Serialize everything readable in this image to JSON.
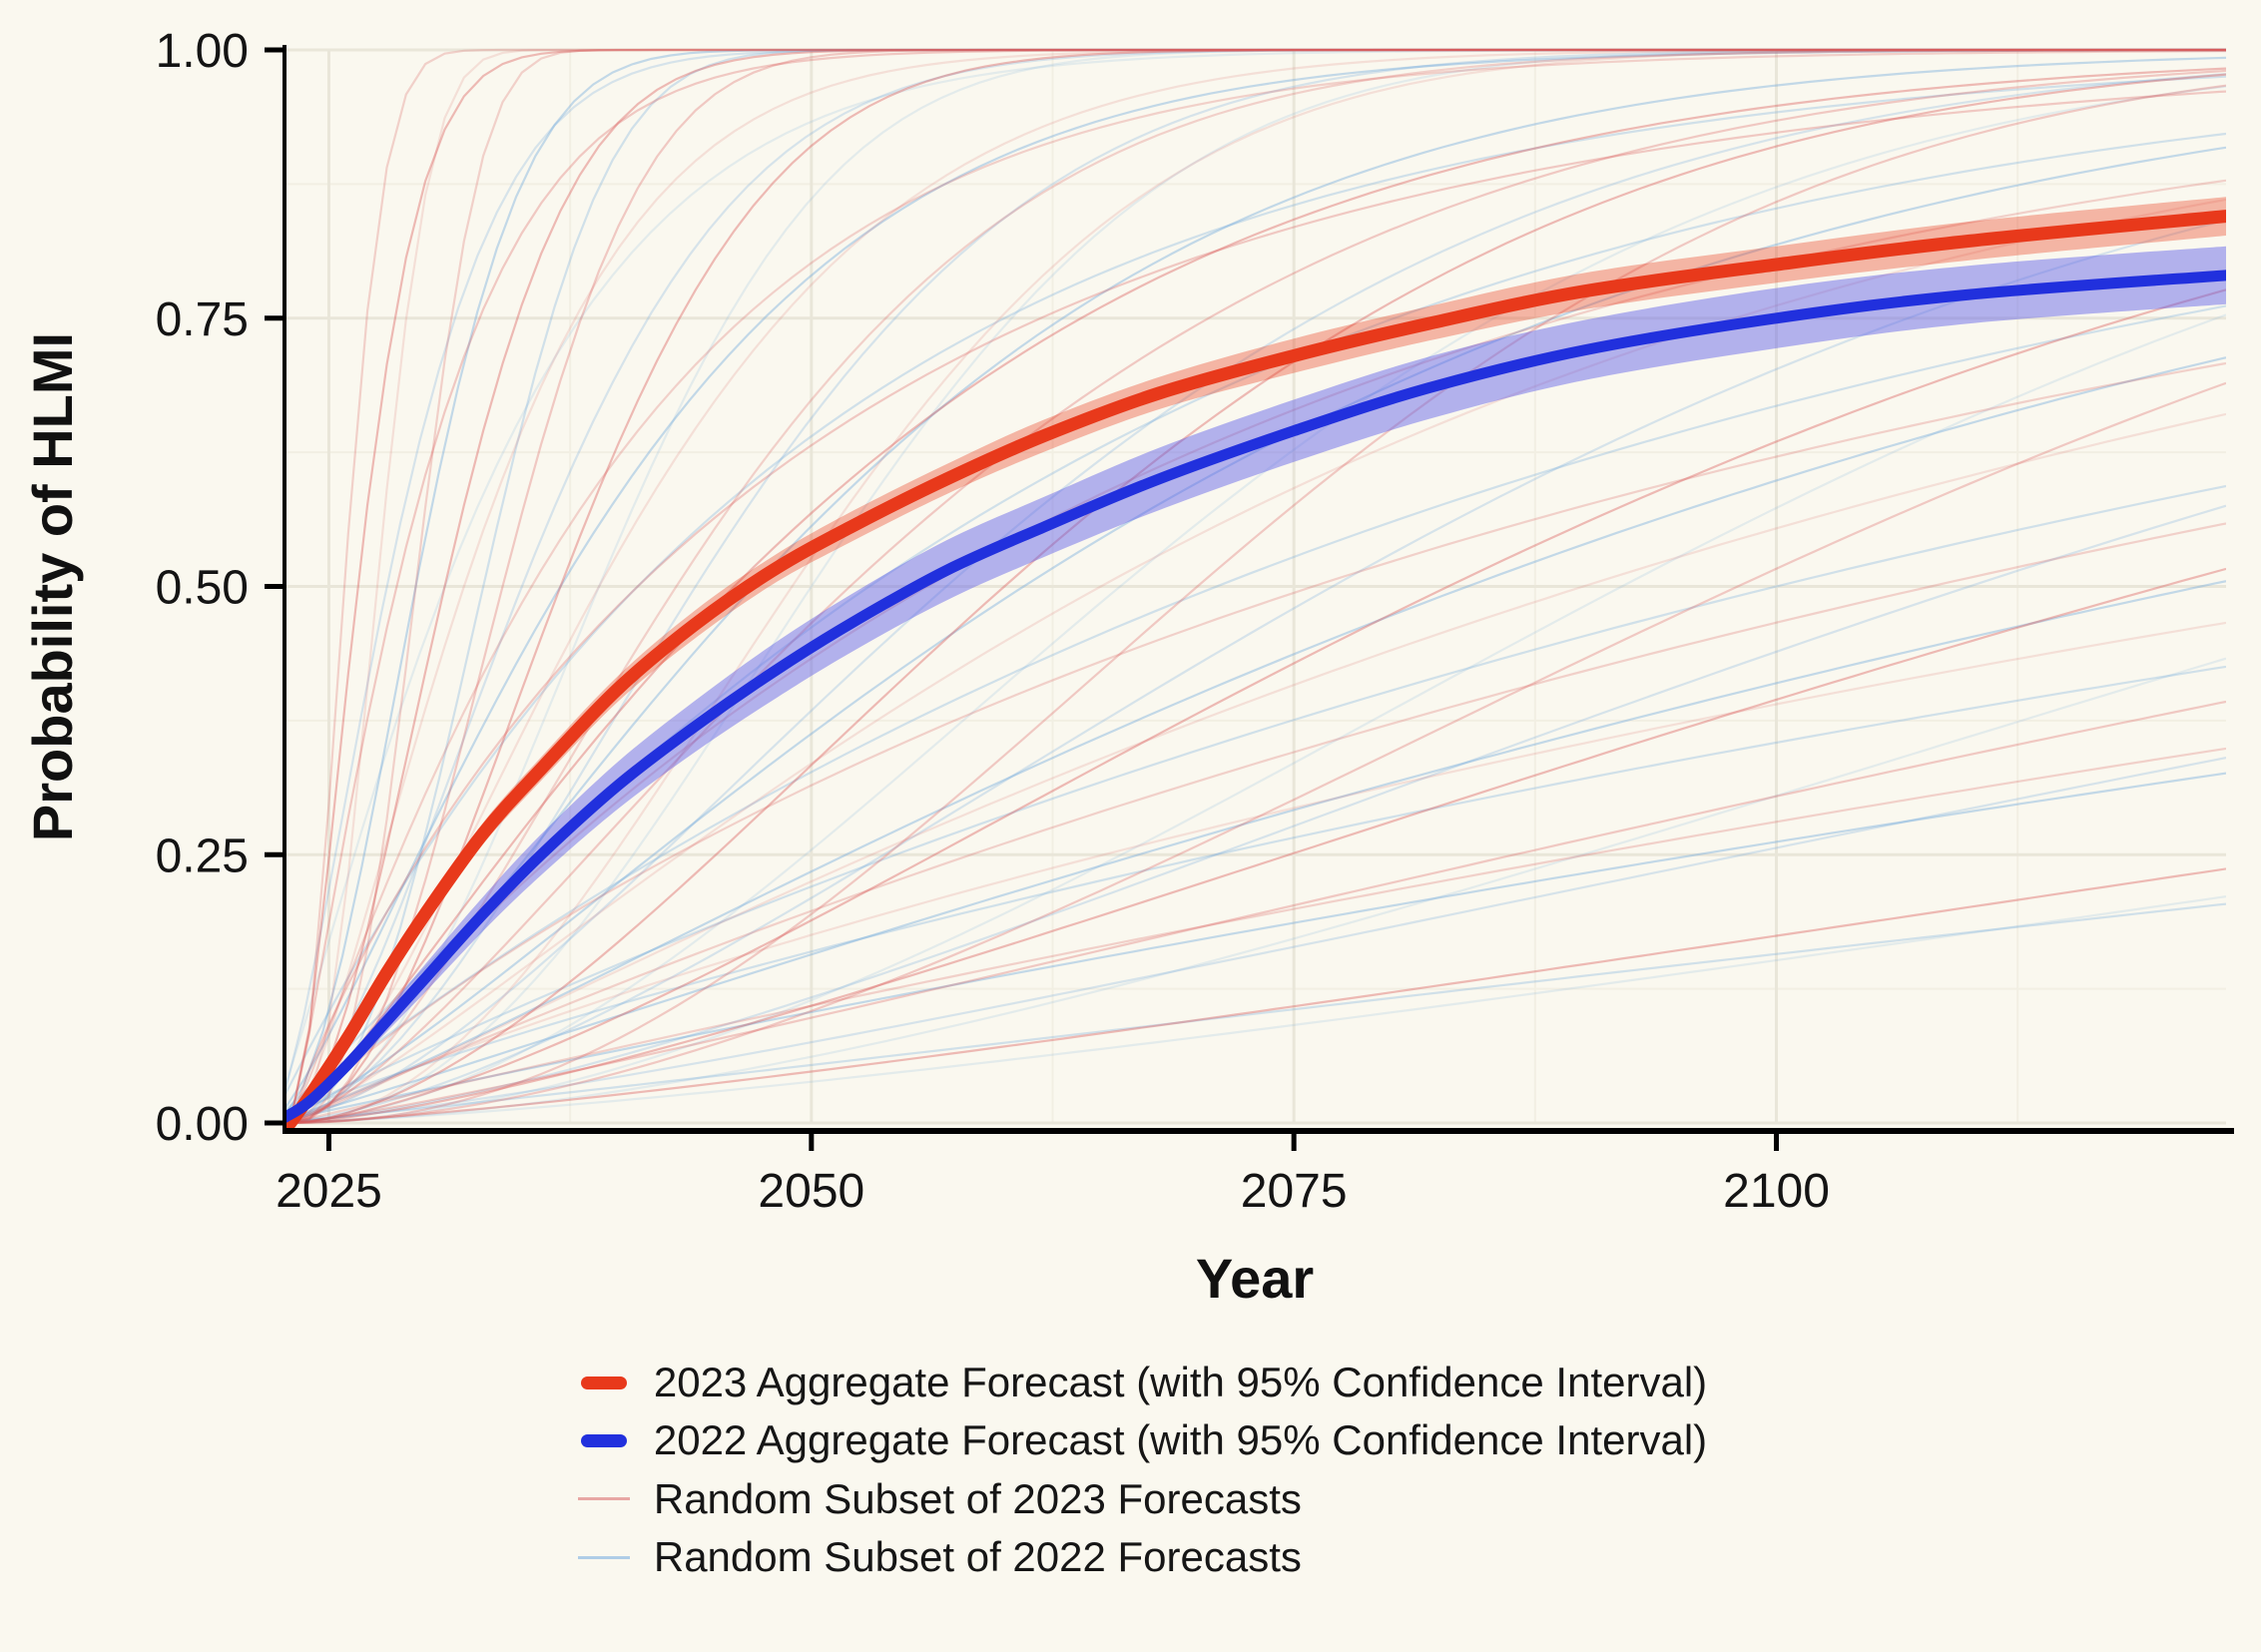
{
  "chart_data": {
    "type": "line",
    "title": "",
    "xlabel": "Year",
    "ylabel": "Probability of HLMI",
    "x_domain": [
      2022.7,
      2123.3
    ],
    "y_domain": [
      0,
      1
    ],
    "x_ticks": [
      {
        "v": 2025,
        "label": "2025"
      },
      {
        "v": 2050,
        "label": "2050"
      },
      {
        "v": 2075,
        "label": "2075"
      },
      {
        "v": 2100,
        "label": "2100"
      }
    ],
    "y_ticks": [
      {
        "v": 0,
        "label": "0.00"
      },
      {
        "v": 0.25,
        "label": "0.25"
      },
      {
        "v": 0.5,
        "label": "0.50"
      },
      {
        "v": 0.75,
        "label": "0.75"
      },
      {
        "v": 1,
        "label": "1.00"
      }
    ],
    "grid": {
      "major_color": "#e9e6d9",
      "minor_color": "#f2efe3",
      "x_minor": [
        2037.5,
        2062.5,
        2087.5,
        2112.5
      ],
      "y_minor": [
        0.125,
        0.375,
        0.625,
        0.875
      ]
    },
    "axis_color": "#000000",
    "background_color": "#faf8ef",
    "series": [
      {
        "name": "2023 Aggregate Forecast",
        "color": "#e8391b",
        "band_color": "#e8391b",
        "band_opacity": 0.35,
        "line_width": 13,
        "points": [
          [
            2023,
            0
          ],
          [
            2024,
            0.025
          ],
          [
            2026,
            0.08
          ],
          [
            2028,
            0.14
          ],
          [
            2030,
            0.195
          ],
          [
            2033,
            0.27
          ],
          [
            2036,
            0.33
          ],
          [
            2040,
            0.405
          ],
          [
            2044,
            0.465
          ],
          [
            2048,
            0.515
          ],
          [
            2052,
            0.555
          ],
          [
            2057,
            0.6
          ],
          [
            2062,
            0.64
          ],
          [
            2068,
            0.68
          ],
          [
            2075,
            0.715
          ],
          [
            2082,
            0.745
          ],
          [
            2090,
            0.775
          ],
          [
            2100,
            0.8
          ],
          [
            2110,
            0.822
          ],
          [
            2123.3,
            0.845
          ]
        ],
        "ci": [
          0.001,
          0.003,
          0.005,
          0.007,
          0.008,
          0.01,
          0.011,
          0.012,
          0.013,
          0.013,
          0.014,
          0.014,
          0.015,
          0.015,
          0.016,
          0.016,
          0.017,
          0.017,
          0.018,
          0.018
        ]
      },
      {
        "name": "2022 Aggregate Forecast",
        "color": "#2130dd",
        "band_color": "#5a5ae8",
        "band_opacity": 0.45,
        "line_width": 11,
        "points": [
          [
            2022.7,
            0.005
          ],
          [
            2024,
            0.02
          ],
          [
            2026,
            0.055
          ],
          [
            2028,
            0.095
          ],
          [
            2030,
            0.135
          ],
          [
            2033,
            0.195
          ],
          [
            2036,
            0.25
          ],
          [
            2040,
            0.315
          ],
          [
            2044,
            0.37
          ],
          [
            2048,
            0.42
          ],
          [
            2052,
            0.465
          ],
          [
            2057,
            0.515
          ],
          [
            2062,
            0.555
          ],
          [
            2068,
            0.6
          ],
          [
            2075,
            0.645
          ],
          [
            2082,
            0.685
          ],
          [
            2090,
            0.72
          ],
          [
            2100,
            0.75
          ],
          [
            2110,
            0.772
          ],
          [
            2123.3,
            0.79
          ]
        ],
        "ci": [
          0.002,
          0.004,
          0.007,
          0.01,
          0.013,
          0.016,
          0.019,
          0.022,
          0.024,
          0.026,
          0.027,
          0.028,
          0.028,
          0.029,
          0.029,
          0.029,
          0.028,
          0.028,
          0.027,
          0.027
        ]
      }
    ],
    "background_series": [
      {
        "name": "Random Subset of 2023 Forecasts",
        "color": "#d95b5b",
        "t0": 2023,
        "curves": [
          [
            2025.8,
            2.0
          ],
          [
            2026.5,
            1.6
          ],
          [
            2027.5,
            2.4
          ],
          [
            2028.5,
            1.2
          ],
          [
            2029.5,
            2.8
          ],
          [
            2031,
            1.8
          ],
          [
            2032,
            1.4
          ],
          [
            2034,
            2.2
          ],
          [
            2035.5,
            1.1
          ],
          [
            2037,
            1.9
          ],
          [
            2039,
            1.5
          ],
          [
            2041,
            0.9
          ],
          [
            2043,
            1.6
          ],
          [
            2046,
            1.2
          ],
          [
            2049,
            2.0
          ],
          [
            2052,
            1.4
          ],
          [
            2056,
            1.0
          ],
          [
            2060,
            1.7
          ],
          [
            2065,
            1.2
          ],
          [
            2070,
            2.1
          ],
          [
            2076,
            0.9
          ],
          [
            2083,
            1.5
          ],
          [
            2090,
            1.1
          ],
          [
            2098,
            1.8
          ],
          [
            2108,
            1.0
          ],
          [
            2120,
            1.4
          ],
          [
            2135,
            0.9
          ],
          [
            2155,
            1.2
          ],
          [
            2185,
            1.0
          ],
          [
            2230,
            1.3
          ]
        ]
      },
      {
        "name": "Random Subset of 2022 Forecasts",
        "color": "#6fa8dc",
        "t0": 2022,
        "curves": [
          [
            2028,
            1.5
          ],
          [
            2029.5,
            2.0
          ],
          [
            2031,
            1.2
          ],
          [
            2033,
            2.5
          ],
          [
            2035,
            1.7
          ],
          [
            2037,
            1.3
          ],
          [
            2039,
            2.1
          ],
          [
            2041,
            1.0
          ],
          [
            2044,
            1.8
          ],
          [
            2047,
            1.4
          ],
          [
            2050,
            2.2
          ],
          [
            2053,
            1.1
          ],
          [
            2057,
            1.6
          ],
          [
            2061,
            1.3
          ],
          [
            2066,
            1.9
          ],
          [
            2071,
            1.0
          ],
          [
            2077,
            1.6
          ],
          [
            2084,
            1.2
          ],
          [
            2092,
            1.9
          ],
          [
            2100,
            1.0
          ],
          [
            2110,
            1.5
          ],
          [
            2122,
            1.1
          ],
          [
            2136,
            1.7
          ],
          [
            2152,
            0.9
          ],
          [
            2172,
            1.3
          ],
          [
            2200,
            1.0
          ],
          [
            2240,
            1.4
          ],
          [
            2300,
            1.1
          ]
        ]
      }
    ]
  },
  "legend": {
    "items": [
      {
        "label": "2023 Aggregate Forecast (with 95% Confidence Interval)",
        "swatch": "thick",
        "color": "#e8391b"
      },
      {
        "label": "2022 Aggregate Forecast (with 95% Confidence Interval)",
        "swatch": "thick",
        "color": "#2130dd"
      },
      {
        "label": "Random Subset of 2023 Forecasts",
        "swatch": "thin",
        "color": "#e08484"
      },
      {
        "label": "Random Subset of 2022 Forecasts",
        "swatch": "thin",
        "color": "#8fbbe4"
      }
    ]
  }
}
